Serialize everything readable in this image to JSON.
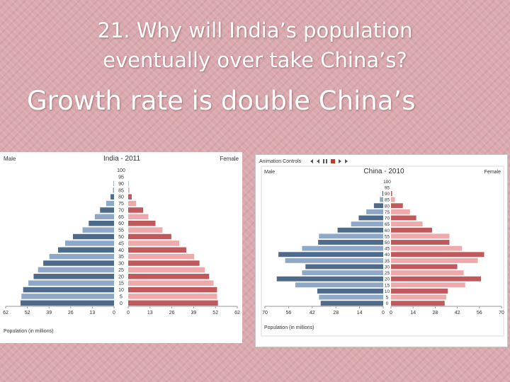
{
  "slide": {
    "question_line1": "21. Why will India’s population",
    "question_line2": "eventually over take China’s?",
    "answer": "Growth rate is double China’s"
  },
  "colors": {
    "male_dark": "#4f6b8c",
    "male_light": "#8fa8c8",
    "female_dark": "#c0595c",
    "female_light": "#eea9aa"
  },
  "chart_data": [
    {
      "type": "bar",
      "title": "India - 2011",
      "left_label": "Male",
      "right_label": "Female",
      "xlabel": "Population (in millions)",
      "x_ticks": [
        "62",
        "52",
        "39",
        "26",
        "13",
        "0",
        "0",
        "13",
        "26",
        "39",
        "52",
        "62"
      ],
      "xlim": [
        0,
        62
      ],
      "age_labels": [
        "100",
        "95",
        "90",
        "85",
        "80",
        "75",
        "70",
        "65",
        "60",
        "55",
        "50",
        "45",
        "40",
        "35",
        "30",
        "25",
        "20",
        "15",
        "10",
        "5",
        "0"
      ],
      "male": [
        0,
        0,
        0.2,
        0.6,
        2,
        4.5,
        8,
        11,
        14.5,
        18,
        23.5,
        28,
        32,
        37,
        40.5,
        43.5,
        46,
        49,
        52,
        53,
        53.5
      ],
      "female": [
        0,
        0,
        0.2,
        0.7,
        2,
        4.5,
        8.5,
        11.5,
        15.5,
        19.5,
        24.5,
        29,
        33,
        37.5,
        40.5,
        43.5,
        46,
        48.5,
        50.5,
        50.5,
        51
      ]
    },
    {
      "type": "bar",
      "title": "China - 2010",
      "controls_label": "Animation Controls",
      "left_label": "Male",
      "right_label": "Female",
      "xlabel": "Population (in millions)",
      "x_ticks": [
        "70",
        "56",
        "42",
        "28",
        "14",
        "0",
        "0",
        "14",
        "28",
        "42",
        "56",
        "70"
      ],
      "xlim": [
        0,
        70
      ],
      "age_labels": [
        "100",
        "95",
        "90",
        "85",
        "80",
        "75",
        "70",
        "65",
        "60",
        "55",
        "50",
        "45",
        "40",
        "35",
        "30",
        "25",
        "20",
        "15",
        "10",
        "5",
        "0"
      ],
      "male": [
        0,
        0,
        0.5,
        2,
        5.5,
        10,
        14.5,
        19,
        27,
        38,
        38.5,
        48,
        62,
        58,
        46,
        48,
        63,
        52,
        39,
        38,
        37
      ],
      "female": [
        0,
        0,
        0.7,
        2.5,
        7.5,
        12,
        16,
        20,
        26,
        37,
        37,
        45,
        59,
        55,
        42,
        46,
        57,
        47,
        36,
        35,
        34
      ]
    }
  ]
}
